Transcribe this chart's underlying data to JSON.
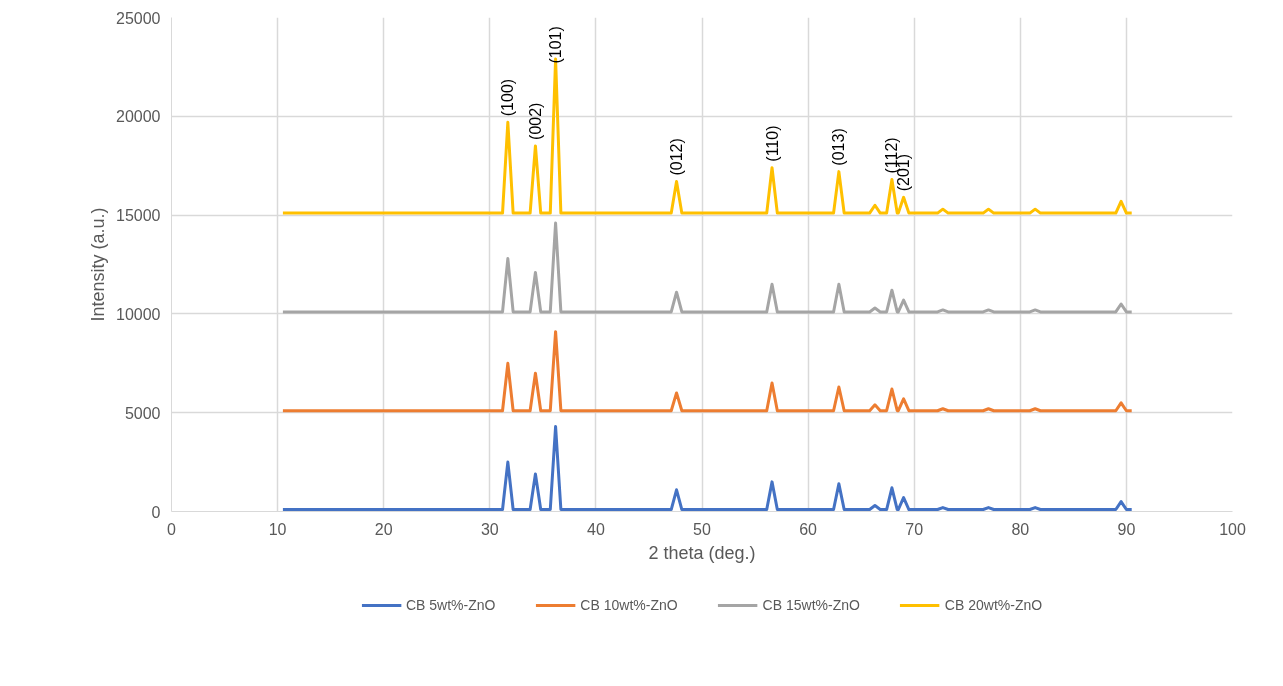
{
  "chart_data": {
    "type": "line",
    "xlabel": "2 theta (deg.)",
    "ylabel": "Intensity (a.u.)",
    "xlim": [
      0,
      100
    ],
    "xticks": [
      0,
      10,
      20,
      30,
      40,
      50,
      60,
      70,
      80,
      90,
      100
    ],
    "ylim": [
      0,
      25000
    ],
    "yticks": [
      0,
      5000,
      10000,
      15000,
      20000,
      25000
    ],
    "grid": true,
    "legend": "bottom",
    "marker": "none",
    "line_style": "solid",
    "x": [
      10.5,
      31.2,
      31.7,
      32.2,
      33.8,
      34.3,
      34.8,
      35.7,
      36.2,
      36.7,
      47.1,
      47.6,
      48.1,
      56.1,
      56.6,
      57.1,
      62.4,
      62.9,
      63.4,
      65.8,
      66.3,
      66.8,
      67.4,
      67.9,
      68.4,
      68.5,
      69.0,
      69.5,
      72.2,
      72.7,
      73.2,
      76.5,
      77.0,
      77.5,
      80.9,
      81.4,
      81.9,
      89.0,
      89.5,
      90.0,
      90.5
    ],
    "series": [
      {
        "name": "CB 5wt%-ZnO",
        "color": "#4472c4",
        "values": [
          100,
          100,
          2500,
          100,
          100,
          1900,
          100,
          100,
          4300,
          100,
          100,
          1100,
          100,
          100,
          1500,
          100,
          100,
          1400,
          100,
          100,
          300,
          100,
          100,
          1200,
          100,
          100,
          700,
          100,
          100,
          200,
          100,
          100,
          200,
          100,
          100,
          200,
          100,
          100,
          500,
          100,
          100
        ]
      },
      {
        "name": "CB 10wt%-ZnO",
        "color": "#ed7d31",
        "values": [
          5100,
          5100,
          7500,
          5100,
          5100,
          7000,
          5100,
          5100,
          9100,
          5100,
          5100,
          6000,
          5100,
          5100,
          6500,
          5100,
          5100,
          6300,
          5100,
          5100,
          5400,
          5100,
          5100,
          6200,
          5100,
          5100,
          5700,
          5100,
          5100,
          5200,
          5100,
          5100,
          5200,
          5100,
          5100,
          5200,
          5100,
          5100,
          5500,
          5100,
          5100
        ]
      },
      {
        "name": "CB 15wt%-ZnO",
        "color": "#a5a5a5",
        "values": [
          10100,
          10100,
          12800,
          10100,
          10100,
          12100,
          10100,
          10100,
          14600,
          10100,
          10100,
          11100,
          10100,
          10100,
          11500,
          10100,
          10100,
          11500,
          10100,
          10100,
          10300,
          10100,
          10100,
          11200,
          10100,
          10100,
          10700,
          10100,
          10100,
          10200,
          10100,
          10100,
          10200,
          10100,
          10100,
          10200,
          10100,
          10100,
          10500,
          10100,
          10100
        ]
      },
      {
        "name": "CB 20wt%-ZnO",
        "color": "#ffc000",
        "values": [
          15100,
          15100,
          19700,
          15100,
          15100,
          18500,
          15100,
          15100,
          22900,
          15100,
          15100,
          16700,
          15100,
          15100,
          17400,
          15100,
          15100,
          17200,
          15100,
          15100,
          15500,
          15100,
          15100,
          16800,
          15100,
          15100,
          15900,
          15100,
          15100,
          15300,
          15100,
          15100,
          15300,
          15100,
          15100,
          15300,
          15100,
          15100,
          15700,
          15100,
          15100
        ]
      }
    ],
    "annotations": [
      {
        "text": "(100)",
        "x": 31.7,
        "y": 19700
      },
      {
        "text": "(002)",
        "x": 34.3,
        "y": 18500
      },
      {
        "text": "(101)",
        "x": 36.2,
        "y": 22900
      },
      {
        "text": "(012)",
        "x": 47.6,
        "y": 16700
      },
      {
        "text": "(110)",
        "x": 56.6,
        "y": 17400
      },
      {
        "text": "(013)",
        "x": 62.9,
        "y": 17200
      },
      {
        "text": "(112)",
        "x": 67.9,
        "y": 16800
      },
      {
        "text": "(201)",
        "x": 69.0,
        "y": 15900
      }
    ]
  }
}
